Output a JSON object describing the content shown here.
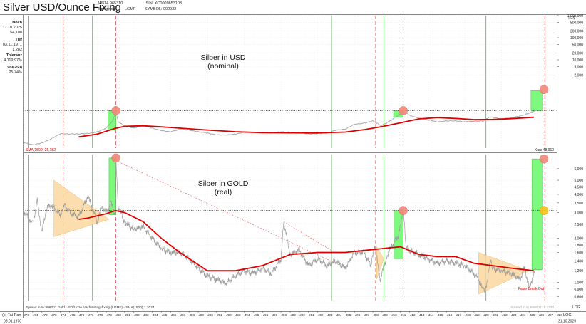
{
  "header": {
    "title": "Silver USD/Ounce Fixing",
    "wkn": "WKN: 965310",
    "isin": "ISIN: XC0009653103",
    "exchange": "Spotpreis",
    "lgmf": "LGMF",
    "symbol": "SYMBOL: 000922"
  },
  "stats": [
    {
      "label": "Hoch",
      "lines": [
        "17.10.2025",
        "54,100"
      ]
    },
    {
      "label": "Tief",
      "lines": [
        "03.11.1971",
        "1,282"
      ]
    },
    {
      "label": "Toleranz",
      "lines": [
        "4.119,97%"
      ]
    },
    {
      "label": "Vol(250)",
      "lines": [
        "25,74%"
      ]
    }
  ],
  "footer": {
    "credit": "(c) Tai-Pan",
    "start_date": "05.01.1970",
    "end_date": "31.10.2025",
    "log_label": "LOG"
  },
  "colors": {
    "price": "#9a9a9a",
    "sma": "#dd0000",
    "green_box": "#7dfa7d",
    "triangle": "#fcd9a0",
    "marker": "#f08878",
    "marker_gold": "#f5c418",
    "green_line": "#44bb44",
    "red_line": "#e05050"
  },
  "chart_data": [
    {
      "type": "line",
      "title": "Silber in USD",
      "subtitle": "(nominal)",
      "unit_label": "US-$",
      "scale": "log",
      "ylim": [
        1,
        1000000
      ],
      "y_ticks": [
        2000,
        5000,
        10000,
        20000,
        50000,
        100000,
        200000,
        500000,
        1000000
      ],
      "y_tick_labels": [
        "2,000",
        "5,000",
        "10,000",
        "20,000",
        "50,000",
        "100,000",
        "200,000",
        "500,000",
        "1.000,000"
      ],
      "sma_label": "SMA(1500) 25,152",
      "last_label": "Kurs 48,960",
      "hline_level": 50,
      "series": [
        {
          "name": "",
          "role": "price",
          "x": [
            1970,
            1971,
            1972,
            1973,
            1974,
            1975,
            1976,
            1977,
            1978,
            1979,
            1979.7,
            1980.05,
            1980.3,
            1981,
            1982,
            1983,
            1984,
            1985,
            1986,
            1987,
            1988,
            1989,
            1990,
            1991,
            1992,
            1993,
            1994,
            1995,
            1996,
            1997,
            1998,
            1999,
            2000,
            2001,
            2002,
            2003,
            2004,
            2005,
            2006,
            2007,
            2008,
            2008.9,
            2009.5,
            2010,
            2010.7,
            2011.3,
            2011.8,
            2012,
            2013,
            2014,
            2015,
            2016,
            2017,
            2018,
            2019,
            2020,
            2020.7,
            2021,
            2022,
            2023,
            2024,
            2025,
            2025.8
          ],
          "values": [
            1.8,
            1.4,
            1.7,
            2.6,
            4.5,
            4.4,
            4.4,
            4.6,
            5.4,
            8,
            17,
            45,
            16,
            10,
            8,
            11,
            8,
            6.2,
            5.5,
            7,
            6.5,
            5.5,
            4.8,
            4,
            3.9,
            4.3,
            5.2,
            5.2,
            5.1,
            4.9,
            5.5,
            5.2,
            5,
            4.4,
            4.6,
            4.9,
            6.5,
            7.2,
            12,
            13.3,
            17,
            10.5,
            14,
            18.5,
            30,
            44,
            35,
            30,
            23,
            19,
            15.5,
            17,
            17,
            15.5,
            16.5,
            17,
            26,
            25,
            21,
            23.5,
            28,
            38,
            54
          ]
        },
        {
          "name": "",
          "role": "sma",
          "x": [
            1976,
            1978,
            1980,
            1981,
            1983,
            1985,
            1987,
            1990,
            1993,
            1996,
            1999,
            2002,
            2005,
            2007,
            2009,
            2011,
            2013,
            2015,
            2017,
            2019,
            2021,
            2023,
            2025.5
          ],
          "values": [
            3.2,
            4.3,
            7.8,
            9.7,
            10.2,
            9.2,
            8.0,
            6.6,
            5.5,
            5.0,
            4.9,
            4.85,
            5.3,
            6.8,
            9.5,
            14,
            21,
            24,
            22,
            19.5,
            19.8,
            21.5,
            25
          ]
        }
      ],
      "green_boxes": [
        {
          "x": [
            1979.2,
            1980.05
          ],
          "y": [
            6.5,
            50
          ]
        },
        {
          "x": [
            2010.25,
            2011.3
          ],
          "y": [
            25,
            50
          ]
        },
        {
          "x": [
            2025.2,
            2026.4
          ],
          "y": [
            50,
            400
          ]
        }
      ],
      "markers": [
        {
          "x": 1980.05,
          "y": 50,
          "color": "red"
        },
        {
          "x": 2011.3,
          "y": 50,
          "color": "red"
        },
        {
          "x": 2026.6,
          "y": 450,
          "color": "red"
        }
      ]
    },
    {
      "type": "line",
      "title": "Silber in GOLD",
      "subtitle": "(real)",
      "scale": "log",
      "ylim": [
        0.75,
        7.5
      ],
      "y_ticks": [
        0.8,
        0.9,
        1.0,
        1.2,
        1.4,
        1.6,
        1.8,
        2.0,
        2.5,
        3.0,
        3.5,
        4.0,
        4.5,
        5.0,
        6.0
      ],
      "y_tick_labels": [
        "0,800",
        "0,900",
        "1,000",
        "1,200",
        "1,400",
        "1,600",
        "1,800",
        "2,000",
        "2,500",
        "3,000",
        "3,500",
        "4,000",
        "4,500",
        "5,000",
        "6,000"
      ],
      "footer_label": "Spread in %:999001 Gold USD/Unze Nachmittagsfixing (LGMF) - SMA(1500) 1,2024",
      "footer_right": "Spread in %:999001: 1,2233",
      "hline_level": 3.1,
      "annotation": "False Break Out",
      "series": [
        {
          "name": "",
          "role": "price",
          "x": [
            1970,
            1971,
            1971.5,
            1972,
            1972.5,
            1973,
            1974,
            1974.5,
            1975,
            1976,
            1977,
            1977.5,
            1978,
            1978.5,
            1979,
            1979.5,
            1980,
            1980.05,
            1980.3,
            1981,
            1982,
            1983,
            1984,
            1985,
            1986,
            1987,
            1988,
            1989,
            1990,
            1991,
            1992,
            1993,
            1994,
            1995,
            1996,
            1997,
            1998,
            1998.3,
            1999,
            2000,
            2001,
            2002,
            2003,
            2004,
            2005,
            2006,
            2007,
            2007.8,
            2008.2,
            2008.8,
            2009.5,
            2010,
            2010.8,
            2011.3,
            2011.6,
            2012,
            2013,
            2014,
            2015,
            2016,
            2017,
            2018,
            2019,
            2019.7,
            2020.2,
            2020.8,
            2021,
            2022,
            2023,
            2024,
            2024.5,
            2025,
            2025.7
          ],
          "values": [
            3.1,
            2.5,
            3.6,
            2.2,
            3.2,
            3.4,
            2.9,
            3.4,
            3.0,
            2.8,
            3.9,
            3.2,
            2.6,
            3.3,
            3.0,
            3.5,
            2.9,
            7.1,
            3.3,
            2.6,
            2.3,
            2.4,
            2.0,
            1.7,
            1.6,
            1.6,
            1.45,
            1.25,
            1.1,
            1.05,
            0.98,
            1.1,
            1.2,
            1.15,
            1.25,
            1.15,
            1.45,
            2.6,
            1.55,
            1.65,
            1.3,
            1.45,
            1.3,
            1.4,
            1.25,
            1.6,
            1.6,
            1.3,
            1.8,
            1.05,
            1.5,
            1.75,
            2.1,
            3.2,
            1.75,
            1.65,
            1.55,
            1.45,
            1.35,
            1.4,
            1.35,
            1.3,
            1.15,
            1.0,
            0.85,
            1.4,
            1.25,
            1.2,
            1.15,
            1.05,
            1.25,
            0.92,
            1.23
          ]
        },
        {
          "name": "",
          "role": "sma",
          "x": [
            1976,
            1977,
            1978,
            1979,
            1980,
            1981,
            1983,
            1985,
            1987,
            1990,
            1993,
            1996,
            1999,
            2002,
            2005,
            2007,
            2009,
            2011,
            2013,
            2015,
            2017,
            2019,
            2021,
            2023,
            2025.5
          ],
          "values": [
            2.7,
            2.75,
            2.85,
            2.95,
            3.1,
            3.0,
            2.6,
            2.0,
            1.6,
            1.2,
            1.2,
            1.3,
            1.55,
            1.6,
            1.6,
            1.65,
            1.7,
            1.75,
            1.55,
            1.5,
            1.5,
            1.35,
            1.3,
            1.25,
            1.2
          ]
        }
      ],
      "triangles": [
        {
          "points": [
            [
              1973.3,
              5.0
            ],
            [
              1979.3,
              2.7
            ],
            [
              1973.3,
              2.05
            ]
          ]
        },
        {
          "points": [
            [
              2008.4,
              1.75
            ],
            [
              2009.2,
              1.45
            ],
            [
              2008.4,
              1.05
            ]
          ]
        },
        {
          "points": [
            [
              2019.5,
              1.6
            ],
            [
              2025.0,
              1.2
            ],
            [
              2019.5,
              0.83
            ]
          ]
        }
      ],
      "green_boxes": [
        {
          "x": [
            1979.3,
            1980.05
          ],
          "y": [
            2.9,
            7.1
          ]
        },
        {
          "x": [
            2010.3,
            2011.3
          ],
          "y": [
            1.45,
            3.1
          ]
        },
        {
          "x": [
            2025.3,
            2026.4
          ],
          "y": [
            1.22,
            7.0
          ]
        }
      ],
      "markers": [
        {
          "x": 1980.05,
          "y": 7.1,
          "color": "red"
        },
        {
          "x": 2011.3,
          "y": 3.1,
          "color": "red"
        },
        {
          "x": 2026.6,
          "y": 7.0,
          "color": "red"
        },
        {
          "x": 2026.6,
          "y": 3.1,
          "color": "yellow"
        }
      ],
      "dotted_trend": [
        [
          1980.3,
          6.7
        ],
        [
          2004.5,
          1.3
        ]
      ],
      "dotted_trend2": [
        [
          1998.3,
          2.6
        ],
        [
          2003.5,
          1.65
        ]
      ]
    }
  ],
  "vlines": {
    "green": [
      1970.5,
      1977.5,
      2003.5,
      2009.2,
      2020.3
    ],
    "red": [
      1974.3,
      1980.05,
      2008.3,
      2011.3,
      2026.7
    ]
  },
  "x_axis": {
    "labels": [
      "J70",
      "J71",
      "J72",
      "J73",
      "J74",
      "J75",
      "J76",
      "J77",
      "J78",
      "J79",
      "J80",
      "J81",
      "J82",
      "J83",
      "J84",
      "J85",
      "J86",
      "J87",
      "J88",
      "J89",
      "J90",
      "J91",
      "J92",
      "J93",
      "J94",
      "J95",
      "J96",
      "J97",
      "J98",
      "J99",
      "J00",
      "J01",
      "J02",
      "J03",
      "J04",
      "J05",
      "J06",
      "J07",
      "J08",
      "J09",
      "J10",
      "J11",
      "J12",
      "J13",
      "J14",
      "J15",
      "J16",
      "J17",
      "J18",
      "J19",
      "J20",
      "J21",
      "J22",
      "J23",
      "J24",
      "J25",
      "J26",
      "J27",
      "J28"
    ],
    "start_year": 1970,
    "end_year": 2028
  }
}
